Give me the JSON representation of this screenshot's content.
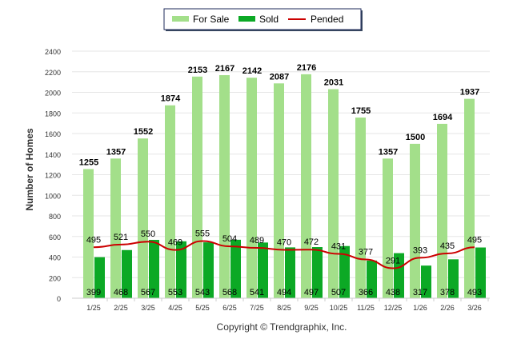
{
  "chart_data": {
    "type": "bar",
    "title": "",
    "xlabel": "",
    "ylabel": "Number of Homes",
    "ylim": [
      0,
      2400
    ],
    "yticks": [
      0,
      200,
      400,
      600,
      800,
      1000,
      1200,
      1400,
      1600,
      1800,
      2000,
      2200,
      2400
    ],
    "grid": true,
    "legend_position": "top-center",
    "categories": [
      "1/25",
      "2/25",
      "3/25",
      "4/25",
      "5/25",
      "6/25",
      "7/25",
      "8/25",
      "9/25",
      "10/25",
      "11/25",
      "12/25",
      "1/26",
      "2/26",
      "3/26"
    ],
    "series": [
      {
        "name": "For Sale",
        "type": "bar",
        "color": "#a3df8a",
        "values": [
          1255,
          1357,
          1552,
          1874,
          2153,
          2167,
          2142,
          2087,
          2176,
          2031,
          1755,
          1357,
          1500,
          1694,
          1937
        ]
      },
      {
        "name": "Sold",
        "type": "bar",
        "color": "#0ca925",
        "values": [
          399,
          468,
          567,
          553,
          543,
          568,
          541,
          494,
          497,
          507,
          366,
          438,
          317,
          378,
          493
        ]
      },
      {
        "name": "Pended",
        "type": "line",
        "color": "#cc0000",
        "values": [
          495,
          521,
          550,
          469,
          555,
          504,
          489,
          470,
          472,
          431,
          377,
          291,
          393,
          435,
          495
        ]
      }
    ],
    "footer": "Copyright © Trendgraphix, Inc."
  }
}
